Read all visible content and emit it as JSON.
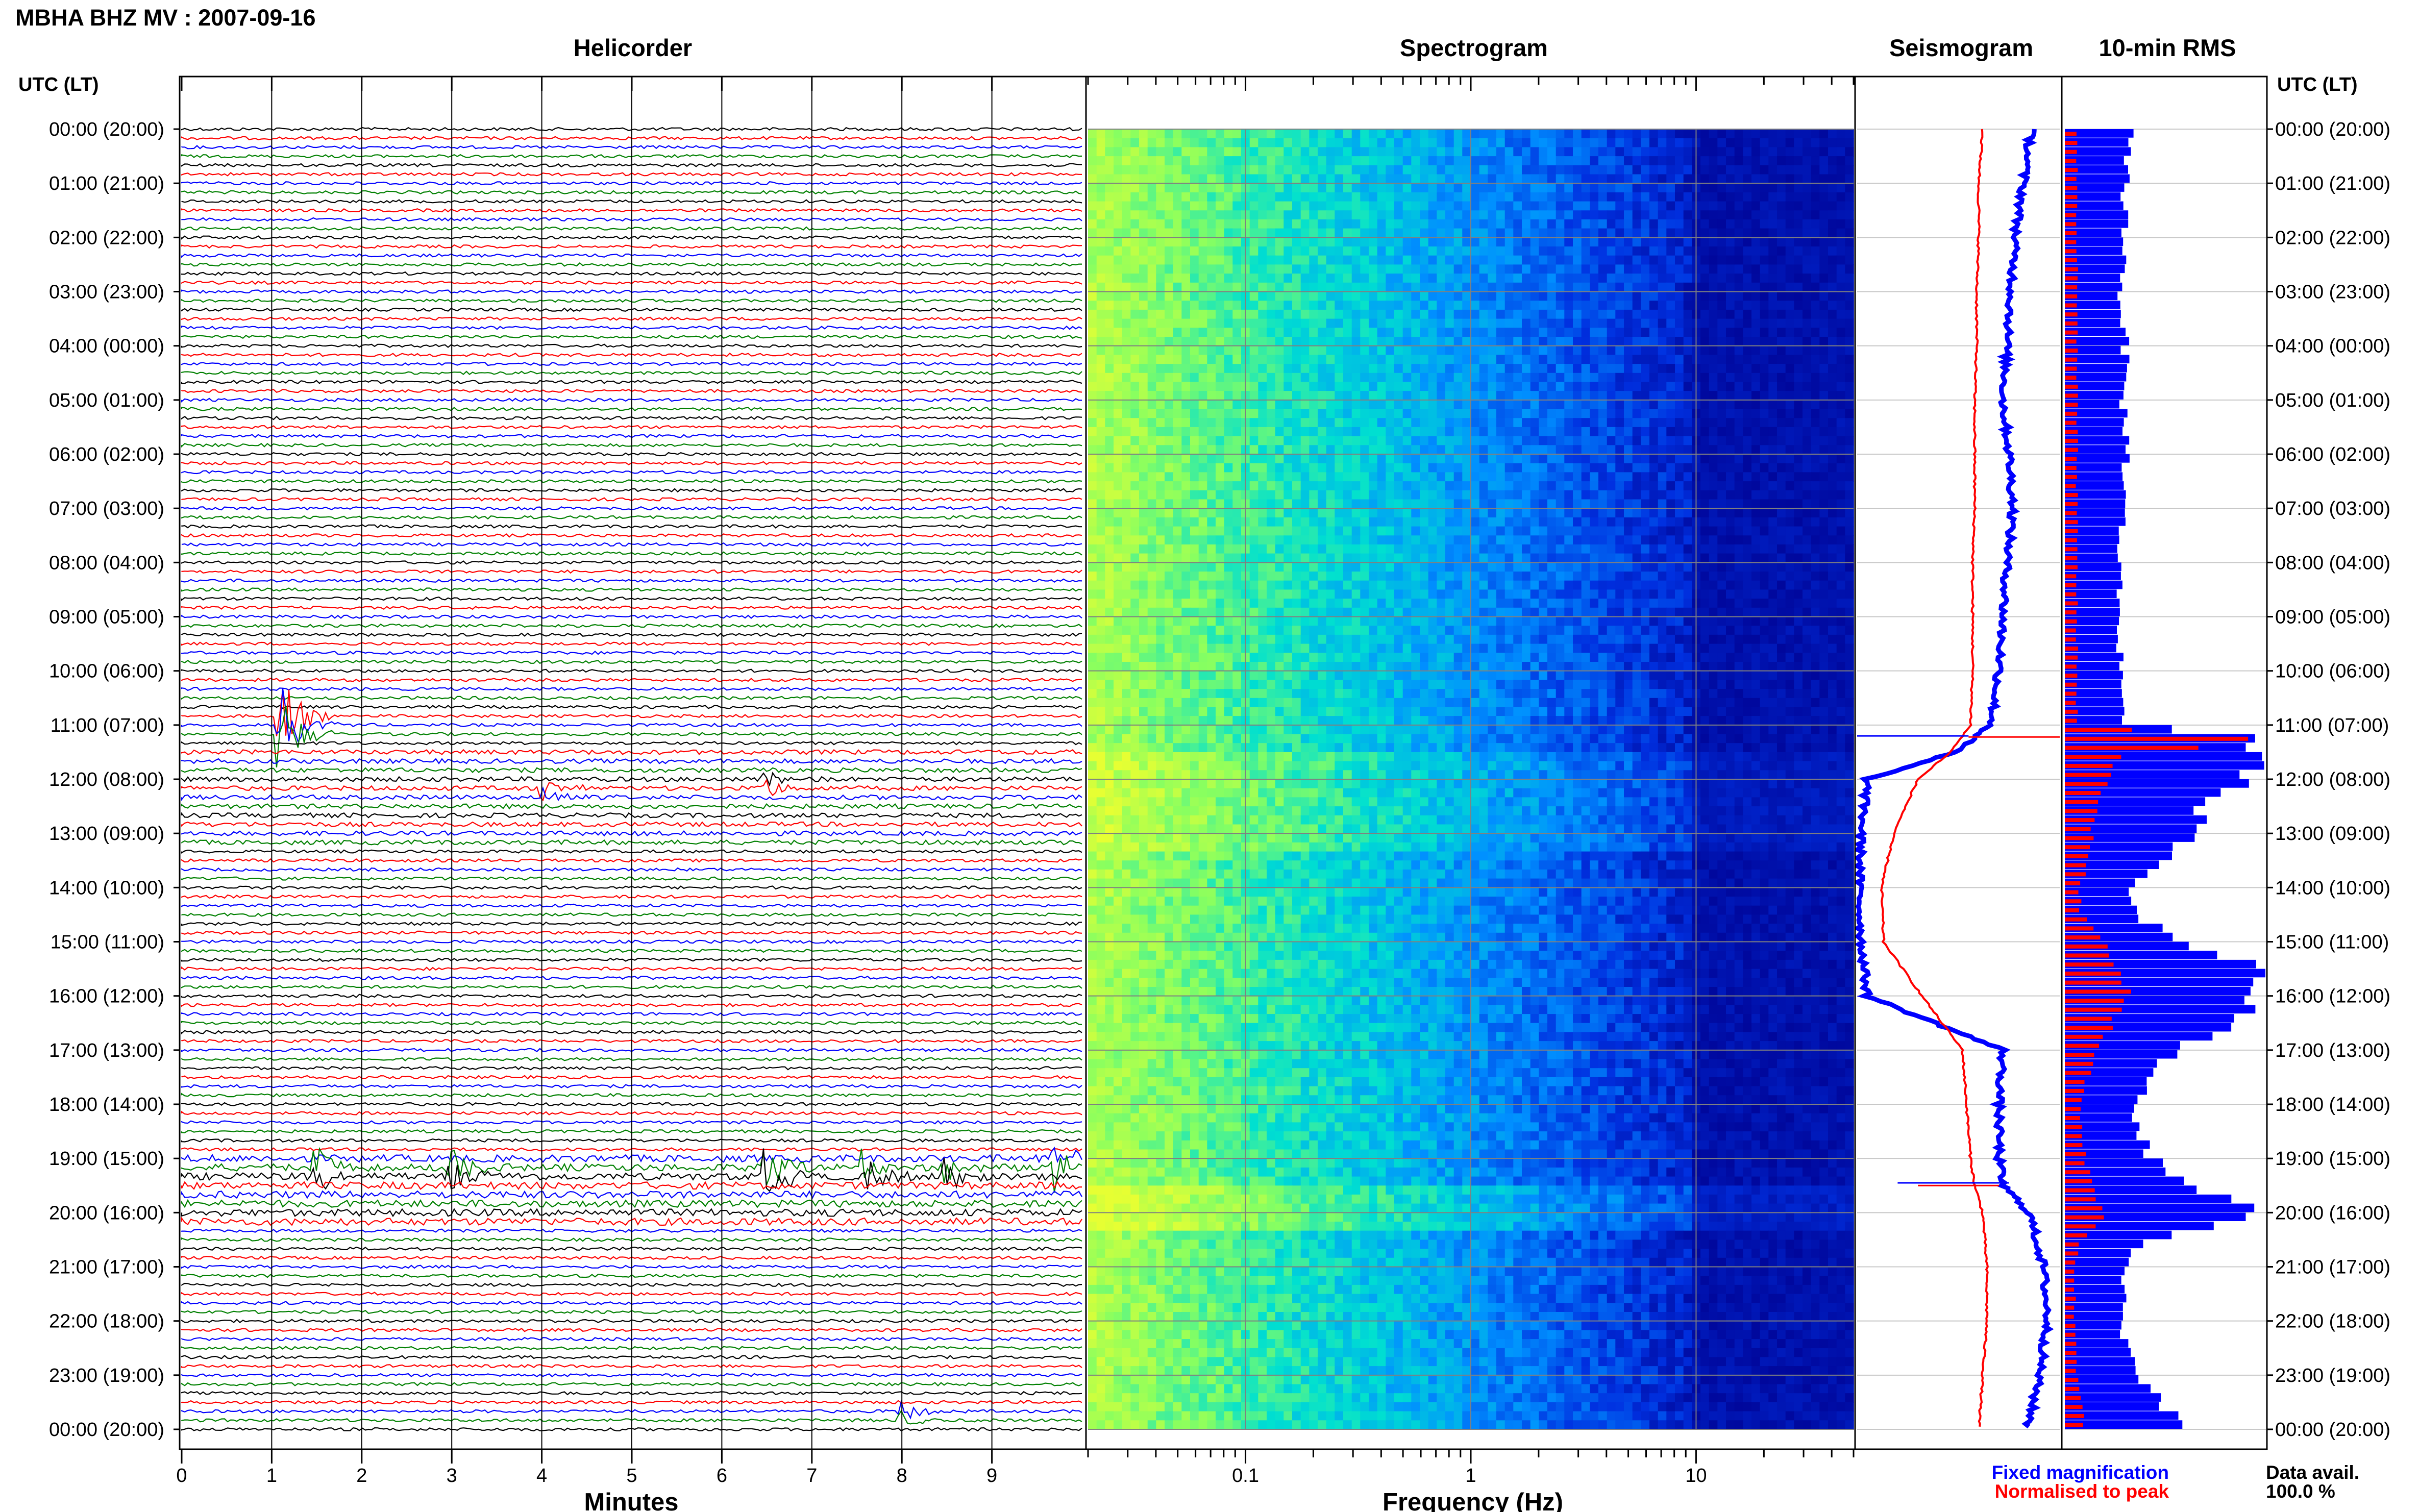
{
  "title": "MBHA BHZ MV : 2007-09-16",
  "panels": {
    "helicorder": "Helicorder",
    "spectrogram": "Spectrogram",
    "seismogram": "Seismogram",
    "rms": "10-min RMS"
  },
  "axis_header_left": "UTC (LT)",
  "axis_header_right": "UTC (LT)",
  "legend": {
    "fixed": "Fixed magnification",
    "normalised": "Normalised to peak",
    "avail_label": "Data avail.",
    "avail_value": "100.0 %"
  },
  "colors": {
    "blue": "#0000ff",
    "red": "#ff0000",
    "green": "#008000",
    "black": "#000000",
    "spectro_low": "#e6ff33",
    "spectro_high": "#000090"
  },
  "chart_data": [
    {
      "type": "line",
      "name": "helicorder",
      "title": "Helicorder",
      "xlabel": "Minutes",
      "x_ticks": [
        "0",
        "1",
        "2",
        "3",
        "4",
        "5",
        "6",
        "7",
        "8",
        "9"
      ],
      "xlim": [
        0,
        10
      ],
      "trace_color_cycle": [
        "black",
        "red",
        "blue",
        "green"
      ],
      "traces_per_hour": 6,
      "time_labels": [
        "00:00 (20:00)",
        "01:00 (21:00)",
        "02:00 (22:00)",
        "03:00 (23:00)",
        "04:00 (00:00)",
        "05:00 (01:00)",
        "06:00 (02:00)",
        "07:00 (03:00)",
        "08:00 (04:00)",
        "09:00 (05:00)",
        "10:00 (06:00)",
        "11:00 (07:00)",
        "12:00 (08:00)",
        "13:00 (09:00)",
        "14:00 (10:00)",
        "15:00 (11:00)",
        "16:00 (12:00)",
        "17:00 (13:00)",
        "18:00 (14:00)",
        "19:00 (15:00)",
        "20:00 (16:00)",
        "21:00 (17:00)",
        "22:00 (18:00)",
        "23:00 (19:00)",
        "00:00 (20:00)"
      ],
      "events": [
        {
          "hour": 11.0,
          "minute": 1.1,
          "color": "green",
          "amp": 5
        },
        {
          "hour": 12.2,
          "minute": 4.0,
          "color": "blue",
          "amp": 1.5
        },
        {
          "hour": 12.1,
          "minute": 6.5,
          "color": "green",
          "amp": 1.2
        },
        {
          "hour": 19.3,
          "minute": 1.5,
          "color": "red",
          "amp": 2.5
        },
        {
          "hour": 19.2,
          "minute": 3.0,
          "color": "red",
          "amp": 2.0
        },
        {
          "hour": 19.3,
          "minute": 6.5,
          "color": "black",
          "amp": 3.0
        },
        {
          "hour": 19.2,
          "minute": 7.6,
          "color": "blue",
          "amp": 2.0
        },
        {
          "hour": 19.3,
          "minute": 8.5,
          "color": "black",
          "amp": 2.0
        },
        {
          "hour": 19.1,
          "minute": 9.7,
          "color": "black",
          "amp": 3.0
        },
        {
          "hour": 23.8,
          "minute": 8.0,
          "color": "blue",
          "amp": 1.3
        }
      ]
    },
    {
      "type": "heatmap",
      "name": "spectrogram",
      "title": "Spectrogram",
      "xlabel": "Frequency (Hz)",
      "x_scale": "log",
      "x_ticks": [
        "0.1",
        "1",
        "10"
      ],
      "xlim": [
        0.02,
        50
      ],
      "colormap": [
        "#e6ff33",
        "#88ff60",
        "#00e0d0",
        "#0090ff",
        "#0030e0",
        "#000090"
      ]
    },
    {
      "type": "line",
      "name": "seismogram",
      "title": "Seismogram",
      "series": [
        {
          "name": "Fixed magnification",
          "color": "blue"
        },
        {
          "name": "Normalised to peak",
          "color": "red"
        }
      ],
      "hours": [
        0,
        1,
        2,
        3,
        4,
        5,
        6,
        7,
        8,
        9,
        10,
        11,
        11.5,
        12,
        13,
        14,
        15,
        16,
        17,
        18,
        19,
        19.5,
        20,
        21,
        22,
        23,
        24
      ],
      "fixed_level": [
        0.86,
        0.82,
        0.78,
        0.76,
        0.74,
        0.72,
        0.75,
        0.77,
        0.74,
        0.72,
        0.7,
        0.66,
        0.48,
        0.05,
        0.02,
        0.01,
        0.02,
        0.05,
        0.72,
        0.7,
        0.7,
        0.72,
        0.85,
        0.92,
        0.94,
        0.9,
        0.84
      ],
      "normalised_level": [
        0.62,
        0.6,
        0.6,
        0.59,
        0.59,
        0.58,
        0.58,
        0.58,
        0.57,
        0.57,
        0.57,
        0.56,
        0.46,
        0.3,
        0.18,
        0.12,
        0.13,
        0.32,
        0.52,
        0.54,
        0.56,
        0.58,
        0.62,
        0.64,
        0.64,
        0.62,
        0.6
      ]
    },
    {
      "type": "bar",
      "name": "rms",
      "title": "10-min RMS",
      "orientation": "horizontal",
      "hours": [
        0,
        1,
        2,
        3,
        4,
        5,
        6,
        7,
        8,
        9,
        10,
        11,
        11.3,
        11.6,
        12,
        12.5,
        13,
        13.5,
        14,
        14.5,
        15,
        15.5,
        16,
        16.5,
        17,
        18,
        19,
        19.5,
        20,
        20.5,
        21,
        22,
        23,
        23.8
      ],
      "fixed": [
        0.32,
        0.3,
        0.3,
        0.28,
        0.3,
        0.29,
        0.31,
        0.29,
        0.27,
        0.27,
        0.28,
        0.3,
        1.0,
        0.92,
        0.95,
        0.7,
        0.65,
        0.5,
        0.32,
        0.36,
        0.58,
        0.98,
        1.0,
        0.82,
        0.55,
        0.34,
        0.42,
        0.62,
        1.0,
        0.4,
        0.3,
        0.28,
        0.34,
        0.55
      ],
      "normalised": [
        0.06,
        0.06,
        0.06,
        0.06,
        0.06,
        0.06,
        0.06,
        0.06,
        0.06,
        0.06,
        0.06,
        0.06,
        1.0,
        0.22,
        0.24,
        0.15,
        0.14,
        0.12,
        0.07,
        0.08,
        0.2,
        0.28,
        0.32,
        0.24,
        0.16,
        0.07,
        0.1,
        0.14,
        0.2,
        0.08,
        0.05,
        0.05,
        0.06,
        0.1
      ]
    }
  ]
}
